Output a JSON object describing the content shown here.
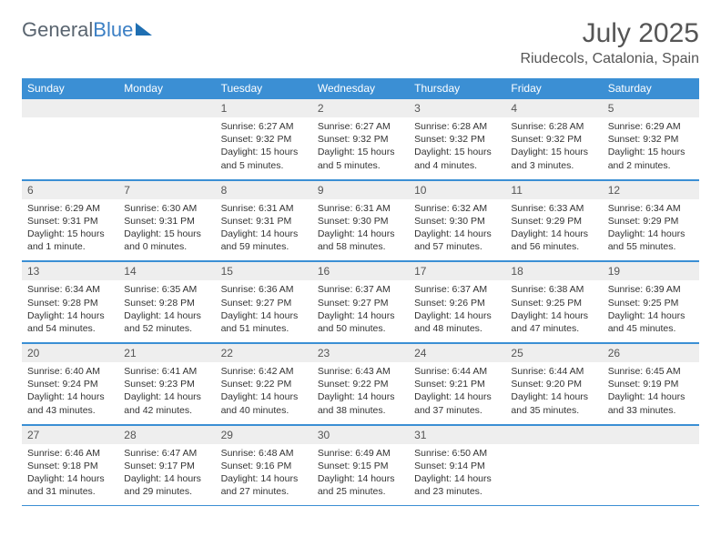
{
  "brand": {
    "part1": "General",
    "part2": "Blue"
  },
  "title": "July 2025",
  "location": "Riudecols, Catalonia, Spain",
  "colors": {
    "header_bg": "#3b8fd4",
    "header_text": "#ffffff",
    "daynum_bg": "#eeeeee",
    "border": "#3b8fd4",
    "title_color": "#555555",
    "body_text": "#333333",
    "logo_gray": "#5a6570",
    "logo_blue": "#3b7fc4"
  },
  "day_headers": [
    "Sunday",
    "Monday",
    "Tuesday",
    "Wednesday",
    "Thursday",
    "Friday",
    "Saturday"
  ],
  "weeks": [
    [
      {
        "n": "",
        "sunrise": "",
        "sunset": "",
        "daylight": ""
      },
      {
        "n": "",
        "sunrise": "",
        "sunset": "",
        "daylight": ""
      },
      {
        "n": "1",
        "sunrise": "6:27 AM",
        "sunset": "9:32 PM",
        "daylight": "15 hours and 5 minutes."
      },
      {
        "n": "2",
        "sunrise": "6:27 AM",
        "sunset": "9:32 PM",
        "daylight": "15 hours and 5 minutes."
      },
      {
        "n": "3",
        "sunrise": "6:28 AM",
        "sunset": "9:32 PM",
        "daylight": "15 hours and 4 minutes."
      },
      {
        "n": "4",
        "sunrise": "6:28 AM",
        "sunset": "9:32 PM",
        "daylight": "15 hours and 3 minutes."
      },
      {
        "n": "5",
        "sunrise": "6:29 AM",
        "sunset": "9:32 PM",
        "daylight": "15 hours and 2 minutes."
      }
    ],
    [
      {
        "n": "6",
        "sunrise": "6:29 AM",
        "sunset": "9:31 PM",
        "daylight": "15 hours and 1 minute."
      },
      {
        "n": "7",
        "sunrise": "6:30 AM",
        "sunset": "9:31 PM",
        "daylight": "15 hours and 0 minutes."
      },
      {
        "n": "8",
        "sunrise": "6:31 AM",
        "sunset": "9:31 PM",
        "daylight": "14 hours and 59 minutes."
      },
      {
        "n": "9",
        "sunrise": "6:31 AM",
        "sunset": "9:30 PM",
        "daylight": "14 hours and 58 minutes."
      },
      {
        "n": "10",
        "sunrise": "6:32 AM",
        "sunset": "9:30 PM",
        "daylight": "14 hours and 57 minutes."
      },
      {
        "n": "11",
        "sunrise": "6:33 AM",
        "sunset": "9:29 PM",
        "daylight": "14 hours and 56 minutes."
      },
      {
        "n": "12",
        "sunrise": "6:34 AM",
        "sunset": "9:29 PM",
        "daylight": "14 hours and 55 minutes."
      }
    ],
    [
      {
        "n": "13",
        "sunrise": "6:34 AM",
        "sunset": "9:28 PM",
        "daylight": "14 hours and 54 minutes."
      },
      {
        "n": "14",
        "sunrise": "6:35 AM",
        "sunset": "9:28 PM",
        "daylight": "14 hours and 52 minutes."
      },
      {
        "n": "15",
        "sunrise": "6:36 AM",
        "sunset": "9:27 PM",
        "daylight": "14 hours and 51 minutes."
      },
      {
        "n": "16",
        "sunrise": "6:37 AM",
        "sunset": "9:27 PM",
        "daylight": "14 hours and 50 minutes."
      },
      {
        "n": "17",
        "sunrise": "6:37 AM",
        "sunset": "9:26 PM",
        "daylight": "14 hours and 48 minutes."
      },
      {
        "n": "18",
        "sunrise": "6:38 AM",
        "sunset": "9:25 PM",
        "daylight": "14 hours and 47 minutes."
      },
      {
        "n": "19",
        "sunrise": "6:39 AM",
        "sunset": "9:25 PM",
        "daylight": "14 hours and 45 minutes."
      }
    ],
    [
      {
        "n": "20",
        "sunrise": "6:40 AM",
        "sunset": "9:24 PM",
        "daylight": "14 hours and 43 minutes."
      },
      {
        "n": "21",
        "sunrise": "6:41 AM",
        "sunset": "9:23 PM",
        "daylight": "14 hours and 42 minutes."
      },
      {
        "n": "22",
        "sunrise": "6:42 AM",
        "sunset": "9:22 PM",
        "daylight": "14 hours and 40 minutes."
      },
      {
        "n": "23",
        "sunrise": "6:43 AM",
        "sunset": "9:22 PM",
        "daylight": "14 hours and 38 minutes."
      },
      {
        "n": "24",
        "sunrise": "6:44 AM",
        "sunset": "9:21 PM",
        "daylight": "14 hours and 37 minutes."
      },
      {
        "n": "25",
        "sunrise": "6:44 AM",
        "sunset": "9:20 PM",
        "daylight": "14 hours and 35 minutes."
      },
      {
        "n": "26",
        "sunrise": "6:45 AM",
        "sunset": "9:19 PM",
        "daylight": "14 hours and 33 minutes."
      }
    ],
    [
      {
        "n": "27",
        "sunrise": "6:46 AM",
        "sunset": "9:18 PM",
        "daylight": "14 hours and 31 minutes."
      },
      {
        "n": "28",
        "sunrise": "6:47 AM",
        "sunset": "9:17 PM",
        "daylight": "14 hours and 29 minutes."
      },
      {
        "n": "29",
        "sunrise": "6:48 AM",
        "sunset": "9:16 PM",
        "daylight": "14 hours and 27 minutes."
      },
      {
        "n": "30",
        "sunrise": "6:49 AM",
        "sunset": "9:15 PM",
        "daylight": "14 hours and 25 minutes."
      },
      {
        "n": "31",
        "sunrise": "6:50 AM",
        "sunset": "9:14 PM",
        "daylight": "14 hours and 23 minutes."
      },
      {
        "n": "",
        "sunrise": "",
        "sunset": "",
        "daylight": ""
      },
      {
        "n": "",
        "sunrise": "",
        "sunset": "",
        "daylight": ""
      }
    ]
  ],
  "labels": {
    "sunrise": "Sunrise:",
    "sunset": "Sunset:",
    "daylight": "Daylight:"
  }
}
